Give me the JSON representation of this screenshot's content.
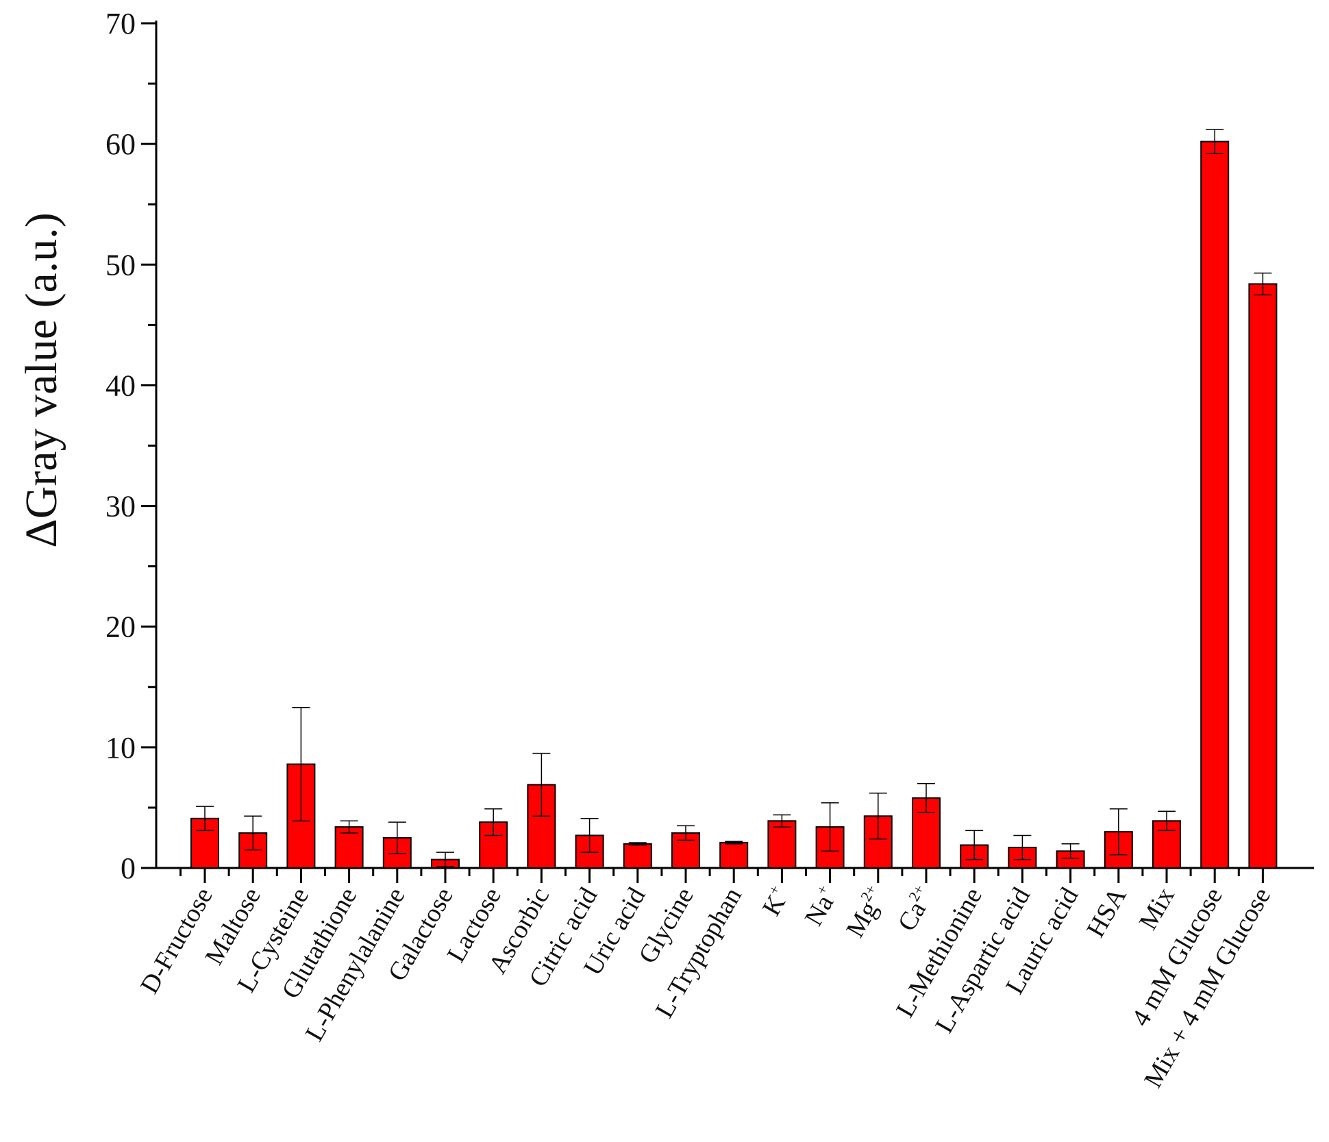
{
  "chart_data": {
    "type": "bar",
    "ylabel": "ΔGray value (a.u.)",
    "xlabel": "",
    "ylim": [
      0,
      70
    ],
    "yticks": [
      0,
      10,
      20,
      30,
      40,
      50,
      60,
      70
    ],
    "grid": false,
    "bar_color": "#ff0000",
    "categories": [
      {
        "text": "D-Fructose"
      },
      {
        "text": "Maltose"
      },
      {
        "text": "L-Cysteine"
      },
      {
        "text": "Glutathione"
      },
      {
        "text": "L-Phenylalanine"
      },
      {
        "text": "Galactose"
      },
      {
        "text": "Lactose"
      },
      {
        "text": "Ascorbic"
      },
      {
        "text": "Citric acid"
      },
      {
        "text": "Uric acid"
      },
      {
        "text": "Glycine"
      },
      {
        "text": "L-Tryptophan"
      },
      {
        "text": "K",
        "sup": "+"
      },
      {
        "text": "Na",
        "sup": "+"
      },
      {
        "text": "Mg",
        "sup": "2+"
      },
      {
        "text": "Ca",
        "sup": "2+"
      },
      {
        "text": "L-Methionine"
      },
      {
        "text": "L-Aspartic acid"
      },
      {
        "text": "Lauric acid"
      },
      {
        "text": "HSA"
      },
      {
        "text": "Mix"
      },
      {
        "text": "4 mM Glucose"
      },
      {
        "text": "Mix + 4 mM Glucose"
      }
    ],
    "values": [
      4.1,
      2.9,
      8.6,
      3.4,
      2.5,
      0.7,
      3.8,
      6.9,
      2.7,
      2.0,
      2.9,
      2.1,
      3.9,
      3.4,
      4.3,
      5.8,
      1.9,
      1.7,
      1.4,
      3.0,
      3.9,
      60.2,
      48.4
    ],
    "errors": [
      1.0,
      1.4,
      4.7,
      0.5,
      1.3,
      0.6,
      1.1,
      2.6,
      1.4,
      0.1,
      0.6,
      0.1,
      0.5,
      2.0,
      1.9,
      1.2,
      1.2,
      1.0,
      0.6,
      1.9,
      0.8,
      1.0,
      0.9
    ]
  }
}
